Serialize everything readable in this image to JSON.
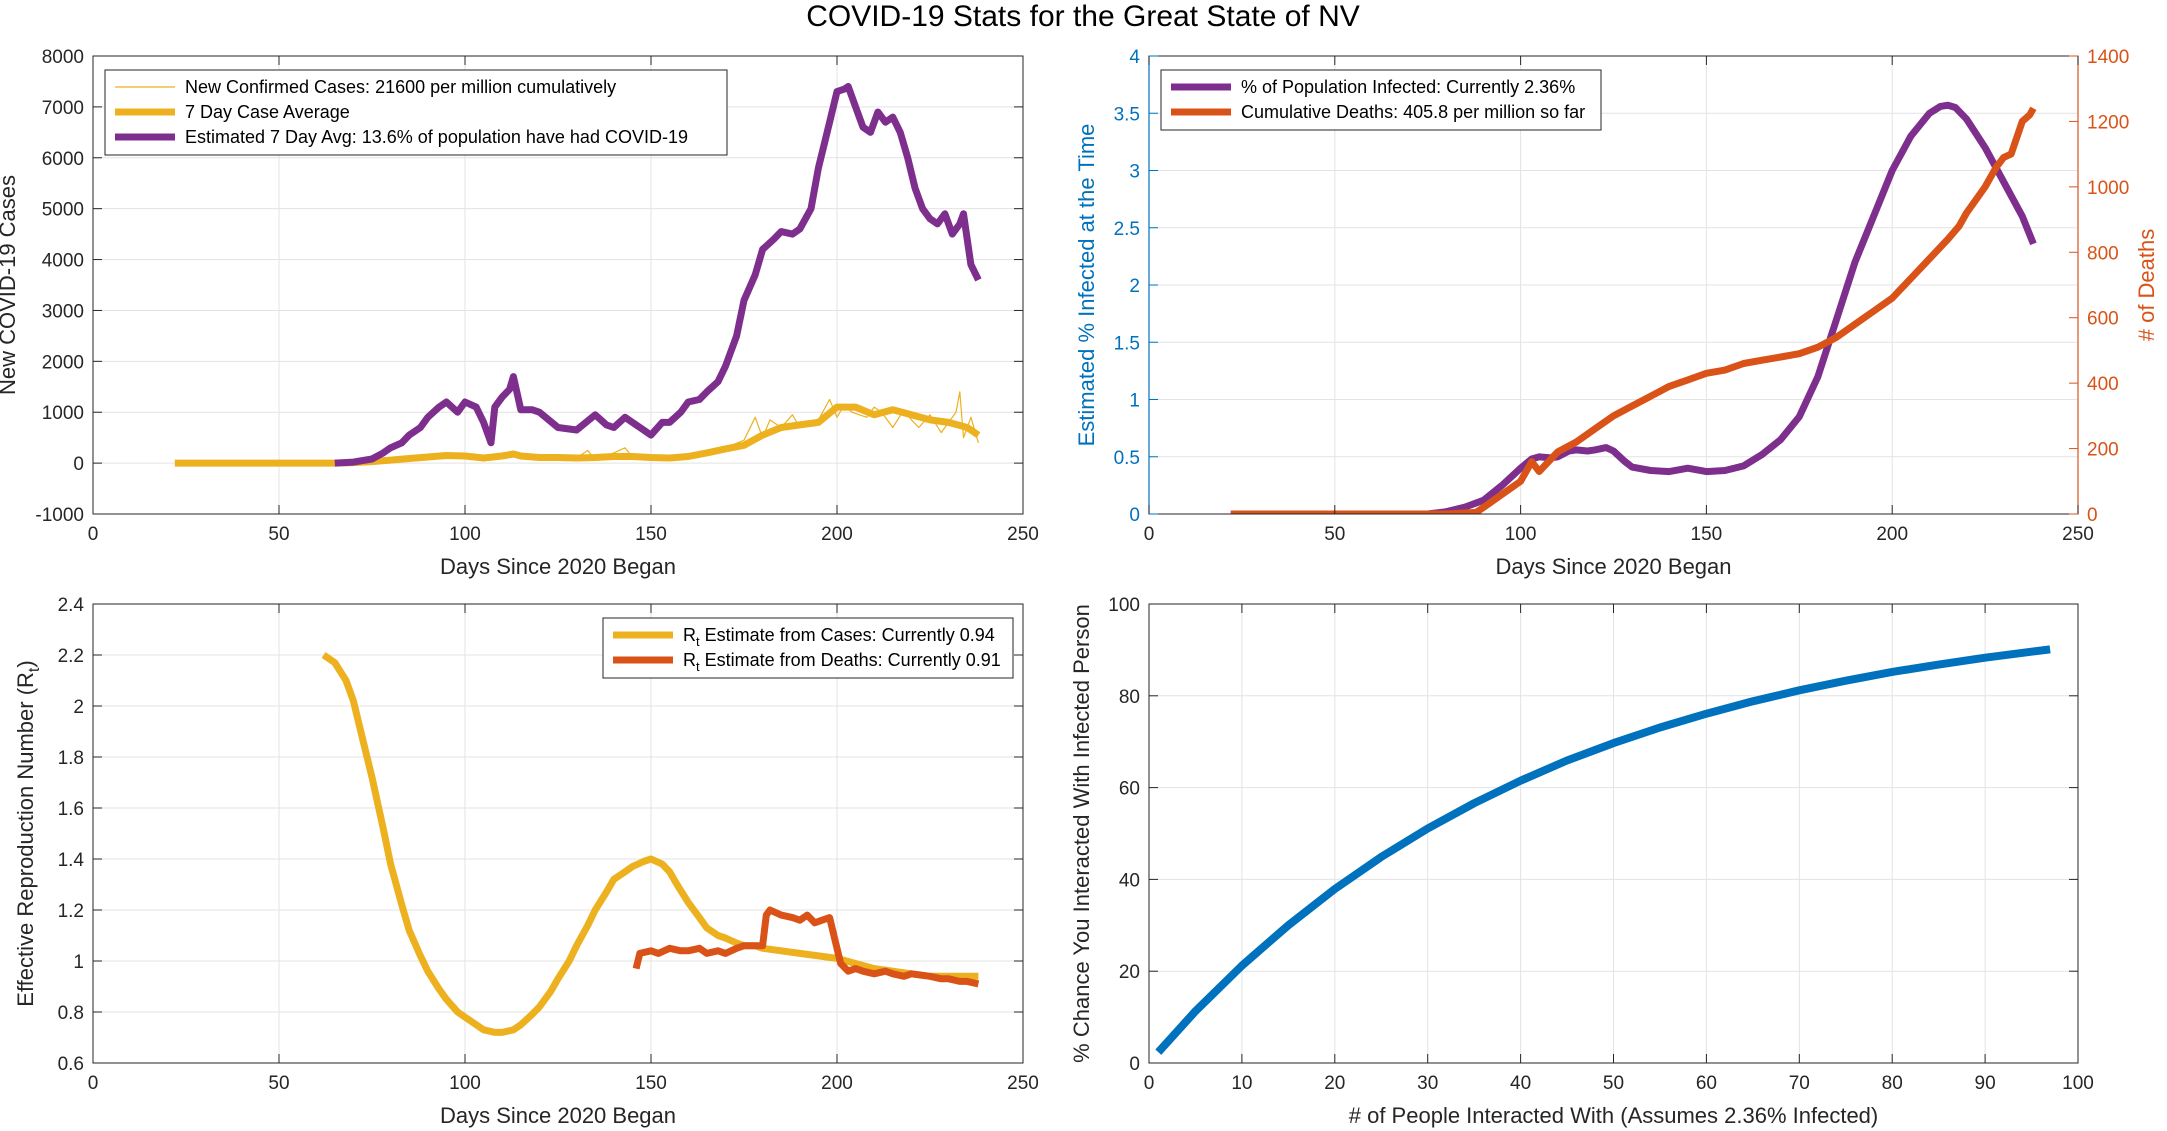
{
  "figure_title": "COVID-19 Stats for the Great State of NV",
  "colors": {
    "purple": "#7E2F8E",
    "yellow": "#EDB120",
    "orange": "#D95319",
    "blue": "#0072BD",
    "axis": "#262626",
    "left_axis_blue": "#0072BD"
  },
  "chart_data": [
    {
      "type": "line",
      "xlabel": "Days Since 2020 Began",
      "ylabel": "New COVID-19 Cases",
      "xlim": [
        0,
        250
      ],
      "ylim": [
        -1000,
        8000
      ],
      "xticks": [
        0,
        50,
        100,
        150,
        200,
        250
      ],
      "yticks": [
        -1000,
        0,
        1000,
        2000,
        3000,
        4000,
        5000,
        6000,
        7000,
        8000
      ],
      "grid": true,
      "legend_position": "top-left",
      "series": [
        {
          "name": "New Confirmed Cases: 21600 per million cumulatively",
          "x": [
            66,
            70,
            75,
            80,
            85,
            90,
            95,
            100,
            105,
            110,
            113,
            115,
            120,
            125,
            130,
            133,
            135,
            140,
            143,
            145,
            150,
            155,
            160,
            165,
            170,
            175,
            178,
            180,
            182,
            185,
            188,
            190,
            193,
            195,
            198,
            200,
            202,
            204,
            206,
            208,
            210,
            212,
            215,
            218,
            220,
            222,
            225,
            228,
            230,
            232,
            233,
            234,
            236,
            238
          ],
          "y": [
            0,
            10,
            40,
            80,
            110,
            150,
            170,
            160,
            40,
            170,
            200,
            140,
            80,
            150,
            100,
            250,
            60,
            200,
            300,
            120,
            100,
            60,
            180,
            220,
            300,
            450,
            900,
            500,
            850,
            700,
            950,
            700,
            750,
            850,
            1250,
            900,
            1150,
            1000,
            950,
            900,
            1100,
            1000,
            700,
            1050,
            850,
            700,
            950,
            600,
            800,
            1000,
            1400,
            500,
            900,
            400
          ]
        },
        {
          "name": "7 Day Case Average",
          "x": [
            22,
            40,
            65,
            70,
            75,
            80,
            85,
            90,
            95,
            100,
            105,
            110,
            113,
            115,
            120,
            125,
            130,
            135,
            140,
            145,
            150,
            155,
            160,
            165,
            170,
            175,
            180,
            185,
            190,
            195,
            200,
            205,
            210,
            215,
            220,
            225,
            230,
            235,
            238
          ],
          "y": [
            0,
            0,
            0,
            10,
            30,
            60,
            90,
            120,
            150,
            140,
            100,
            140,
            180,
            140,
            110,
            110,
            100,
            110,
            130,
            130,
            110,
            100,
            130,
            200,
            280,
            350,
            550,
            700,
            750,
            800,
            1100,
            1100,
            950,
            1050,
            950,
            850,
            800,
            700,
            550
          ]
        },
        {
          "name": "Estimated 7 Day Avg: 13.6% of population have had COVID-19",
          "x": [
            65,
            70,
            75,
            78,
            80,
            83,
            85,
            88,
            90,
            93,
            95,
            98,
            100,
            103,
            105,
            107,
            108,
            110,
            112,
            113,
            115,
            118,
            120,
            125,
            130,
            135,
            138,
            140,
            143,
            145,
            148,
            150,
            153,
            155,
            158,
            160,
            163,
            165,
            168,
            170,
            173,
            175,
            178,
            180,
            183,
            185,
            188,
            190,
            193,
            195,
            198,
            200,
            202,
            203,
            205,
            207,
            209,
            211,
            213,
            215,
            217,
            219,
            221,
            223,
            225,
            227,
            229,
            231,
            233,
            234,
            236,
            238
          ],
          "y": [
            0,
            20,
            80,
            200,
            300,
            400,
            550,
            700,
            900,
            1100,
            1200,
            1000,
            1200,
            1100,
            800,
            400,
            1100,
            1300,
            1450,
            1700,
            1050,
            1050,
            1000,
            700,
            650,
            950,
            750,
            700,
            900,
            800,
            650,
            550,
            800,
            800,
            1000,
            1200,
            1250,
            1400,
            1600,
            1900,
            2500,
            3200,
            3700,
            4200,
            4400,
            4550,
            4500,
            4600,
            5000,
            5800,
            6700,
            7300,
            7350,
            7400,
            7000,
            6600,
            6500,
            6900,
            6700,
            6800,
            6500,
            6000,
            5400,
            5000,
            4800,
            4700,
            4900,
            4500,
            4700,
            4900,
            3900,
            3600
          ]
        }
      ]
    },
    {
      "type": "line",
      "xlabel": "Days Since 2020 Began",
      "ylabel": "Estimated % Infected at the Time",
      "ylabel_right": "# of Deaths",
      "xlim": [
        0,
        250
      ],
      "ylim": [
        0,
        4
      ],
      "ylim_right": [
        0,
        1400
      ],
      "xticks": [
        0,
        50,
        100,
        150,
        200,
        250
      ],
      "yticks": [
        0,
        0.5,
        1,
        1.5,
        2,
        2.5,
        3,
        3.5,
        4
      ],
      "yticks_right": [
        0,
        200,
        400,
        600,
        800,
        1000,
        1200,
        1400
      ],
      "grid": true,
      "legend_position": "top-left",
      "series": [
        {
          "name": "% of Population Infected: Currently 2.36%",
          "axis": "left",
          "x": [
            22,
            40,
            60,
            70,
            75,
            80,
            85,
            90,
            95,
            100,
            103,
            105,
            108,
            110,
            113,
            115,
            118,
            120,
            123,
            125,
            128,
            130,
            135,
            140,
            145,
            150,
            155,
            160,
            165,
            170,
            175,
            180,
            185,
            190,
            195,
            200,
            205,
            210,
            213,
            215,
            217,
            220,
            225,
            230,
            235,
            238
          ],
          "y": [
            0,
            0,
            0,
            0,
            0,
            0.02,
            0.06,
            0.12,
            0.25,
            0.4,
            0.48,
            0.5,
            0.49,
            0.5,
            0.55,
            0.56,
            0.55,
            0.56,
            0.58,
            0.55,
            0.46,
            0.41,
            0.38,
            0.37,
            0.4,
            0.37,
            0.38,
            0.42,
            0.52,
            0.65,
            0.85,
            1.2,
            1.7,
            2.2,
            2.6,
            3.0,
            3.3,
            3.5,
            3.56,
            3.57,
            3.55,
            3.45,
            3.2,
            2.9,
            2.6,
            2.36
          ]
        },
        {
          "name": "Cumulative Deaths: 405.8 per million so far",
          "axis": "right",
          "x": [
            22,
            40,
            60,
            80,
            88,
            90,
            95,
            100,
            103,
            105,
            110,
            115,
            120,
            125,
            130,
            135,
            140,
            145,
            150,
            155,
            160,
            165,
            170,
            175,
            180,
            185,
            190,
            195,
            200,
            205,
            210,
            215,
            218,
            220,
            225,
            228,
            230,
            232,
            235,
            237,
            238
          ],
          "y": [
            0,
            0,
            0,
            0,
            5,
            20,
            60,
            100,
            160,
            130,
            190,
            220,
            260,
            300,
            330,
            360,
            390,
            410,
            430,
            440,
            460,
            470,
            480,
            490,
            510,
            540,
            580,
            620,
            660,
            720,
            780,
            840,
            880,
            920,
            1000,
            1060,
            1090,
            1100,
            1200,
            1220,
            1240
          ]
        }
      ]
    },
    {
      "type": "line",
      "xlabel": "Days Since 2020 Began",
      "ylabel": "Effective Reproduction Number (R",
      "ylabel_sub": "t",
      "ylabel_close": ")",
      "xlim": [
        0,
        250
      ],
      "ylim": [
        0.6,
        2.4
      ],
      "xticks": [
        0,
        50,
        100,
        150,
        200,
        250
      ],
      "yticks": [
        0.6,
        0.8,
        1,
        1.2,
        1.4,
        1.6,
        1.8,
        2,
        2.2,
        2.4
      ],
      "grid": true,
      "legend_position": "top-right",
      "series": [
        {
          "name": "Estimate from Cases: Currently 0.94",
          "name_prefix": "R",
          "name_sub": "t",
          "x": [
            62,
            65,
            68,
            70,
            72,
            75,
            78,
            80,
            83,
            85,
            88,
            90,
            93,
            95,
            98,
            100,
            103,
            105,
            108,
            110,
            113,
            115,
            118,
            120,
            123,
            125,
            128,
            130,
            133,
            135,
            138,
            140,
            143,
            145,
            148,
            150,
            153,
            155,
            157,
            160,
            163,
            165,
            168,
            170,
            173,
            175,
            178,
            180,
            185,
            190,
            195,
            200,
            205,
            210,
            215,
            220,
            225,
            230,
            235,
            238
          ],
          "y": [
            2.2,
            2.17,
            2.1,
            2.02,
            1.9,
            1.72,
            1.52,
            1.38,
            1.22,
            1.12,
            1.02,
            0.96,
            0.89,
            0.85,
            0.8,
            0.78,
            0.75,
            0.73,
            0.72,
            0.72,
            0.73,
            0.75,
            0.79,
            0.82,
            0.88,
            0.93,
            1.0,
            1.06,
            1.14,
            1.2,
            1.27,
            1.32,
            1.35,
            1.37,
            1.39,
            1.4,
            1.38,
            1.35,
            1.3,
            1.23,
            1.17,
            1.13,
            1.1,
            1.09,
            1.07,
            1.06,
            1.06,
            1.05,
            1.04,
            1.03,
            1.02,
            1.01,
            0.99,
            0.97,
            0.96,
            0.95,
            0.94,
            0.94,
            0.94,
            0.94
          ]
        },
        {
          "name": "Estimate from Deaths: Currently 0.91",
          "name_prefix": "R",
          "name_sub": "t",
          "x": [
            146,
            147,
            150,
            152,
            155,
            158,
            160,
            163,
            165,
            168,
            170,
            173,
            175,
            178,
            180,
            181,
            182,
            185,
            188,
            190,
            192,
            194,
            196,
            198,
            199,
            200,
            201,
            203,
            205,
            207,
            210,
            213,
            215,
            218,
            220,
            225,
            228,
            230,
            233,
            235,
            238
          ],
          "y": [
            0.97,
            1.03,
            1.04,
            1.03,
            1.05,
            1.04,
            1.04,
            1.05,
            1.03,
            1.04,
            1.03,
            1.05,
            1.06,
            1.06,
            1.06,
            1.18,
            1.2,
            1.18,
            1.17,
            1.16,
            1.18,
            1.15,
            1.16,
            1.17,
            1.11,
            1.05,
            0.99,
            0.96,
            0.97,
            0.96,
            0.95,
            0.96,
            0.95,
            0.94,
            0.95,
            0.94,
            0.93,
            0.93,
            0.92,
            0.92,
            0.91
          ]
        }
      ]
    },
    {
      "type": "line",
      "xlabel": "# of People Interacted With (Assumes 2.36% Infected)",
      "ylabel": "% Chance You Interacted With Infected Person",
      "xlim": [
        0,
        100
      ],
      "ylim": [
        0,
        100
      ],
      "xticks": [
        0,
        10,
        20,
        30,
        40,
        50,
        60,
        70,
        80,
        90,
        100
      ],
      "yticks": [
        0,
        20,
        40,
        60,
        80,
        100
      ],
      "grid": true,
      "series": [
        {
          "name": "",
          "x": [
            1,
            5,
            10,
            15,
            20,
            25,
            30,
            35,
            40,
            45,
            50,
            55,
            60,
            65,
            70,
            75,
            80,
            85,
            90,
            95,
            97
          ],
          "y": [
            2.36,
            11.3,
            21.2,
            30.0,
            37.9,
            44.9,
            51.1,
            56.6,
            61.5,
            65.9,
            69.7,
            73.1,
            76.1,
            78.8,
            81.2,
            83.3,
            85.2,
            86.8,
            88.3,
            89.6,
            90.1
          ]
        }
      ]
    }
  ]
}
